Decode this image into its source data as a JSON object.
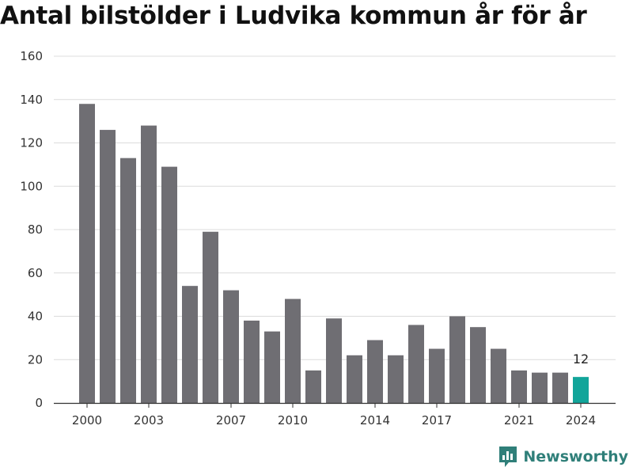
{
  "title": "Antal bilstölder i Ludvika kommun år för år",
  "brand": {
    "name": "Newsworthy",
    "icon": "bar-chart-logo-icon"
  },
  "colors": {
    "bar": "#6f6e73",
    "highlight": "#12a59a",
    "grid": "#dcdcdc",
    "axis": "#333333",
    "brand": "#2f7f79"
  },
  "chart_data": {
    "type": "bar",
    "title": "Antal bilstölder i Ludvika kommun år för år",
    "xlabel": "",
    "ylabel": "",
    "categories": [
      2000,
      2001,
      2002,
      2003,
      2004,
      2005,
      2006,
      2007,
      2008,
      2009,
      2010,
      2011,
      2012,
      2013,
      2014,
      2015,
      2016,
      2017,
      2018,
      2019,
      2020,
      2021,
      2022,
      2023,
      2024
    ],
    "values": [
      138,
      126,
      113,
      128,
      109,
      54,
      79,
      52,
      38,
      33,
      48,
      15,
      39,
      22,
      29,
      22,
      36,
      25,
      40,
      35,
      25,
      15,
      14,
      14,
      12
    ],
    "x_tick_labels": [
      "2000",
      "2003",
      "2007",
      "2010",
      "2014",
      "2017",
      "2021",
      "2024"
    ],
    "y_ticks": [
      0,
      20,
      40,
      60,
      80,
      100,
      120,
      140,
      160
    ],
    "ylim": [
      0,
      160
    ],
    "highlight_category": 2024,
    "annotations": [
      {
        "category": 2024,
        "text": "12"
      }
    ],
    "grid": true,
    "legend": "none"
  }
}
